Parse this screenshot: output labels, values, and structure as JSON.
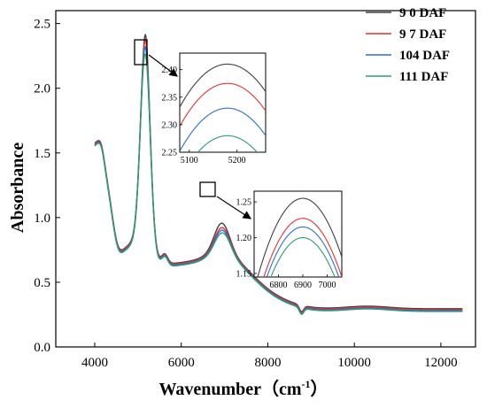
{
  "chart_data": {
    "type": "line",
    "xlabel": "Wavenumber（cm",
    "xlabel_sup": "-1",
    "xlabel_close": "）",
    "ylabel": "Absorbance",
    "xlim": [
      3100,
      12800
    ],
    "ylim": [
      0,
      2.6
    ],
    "x_ticks": [
      4000,
      6000,
      8000,
      10000,
      12000
    ],
    "x_tick_labels": [
      "4000",
      "6000",
      "8000",
      "10000",
      "12000"
    ],
    "y_ticks": [
      0.0,
      0.5,
      1.0,
      1.5,
      2.0,
      2.5
    ],
    "y_tick_labels": [
      "0.0",
      "0.5",
      "1.0",
      "1.5",
      "2.0",
      "2.5"
    ],
    "legend_position": "top-right",
    "series": [
      {
        "name": "9 0 DAF",
        "color": "#404040",
        "peak1": 2.41,
        "peak2": 1.255,
        "offset": 0.015
      },
      {
        "name": "9 7 DAF",
        "color": "#e8312f",
        "peak1": 2.375,
        "peak2": 1.227,
        "offset": 0.008
      },
      {
        "name": "104 DAF",
        "color": "#2a6fd6",
        "peak1": 2.33,
        "peak2": 1.215,
        "offset": 0.0
      },
      {
        "name": "111 DAF",
        "color": "#2a9d6e",
        "peak1": 2.28,
        "peak2": 1.2,
        "offset": -0.006
      }
    ],
    "inset1": {
      "xlim": [
        5080,
        5260
      ],
      "ylim": [
        2.25,
        2.43
      ],
      "x_ticks": [
        5100,
        5200
      ],
      "x_tick_labels": [
        "5100",
        "5200"
      ],
      "y_ticks": [
        2.25,
        2.3,
        2.35,
        2.4
      ],
      "y_tick_labels": [
        "2.25",
        "2.30",
        "2.35",
        "2.40"
      ]
    },
    "inset2": {
      "xlim": [
        6700,
        7060
      ],
      "ylim": [
        1.145,
        1.265
      ],
      "x_ticks": [
        6800,
        6900,
        7000
      ],
      "x_tick_labels": [
        "6800",
        "6900",
        "7000"
      ],
      "y_ticks": [
        1.15,
        1.2,
        1.25
      ],
      "y_tick_labels": [
        "1.15",
        "1.20",
        "1.25"
      ]
    }
  }
}
